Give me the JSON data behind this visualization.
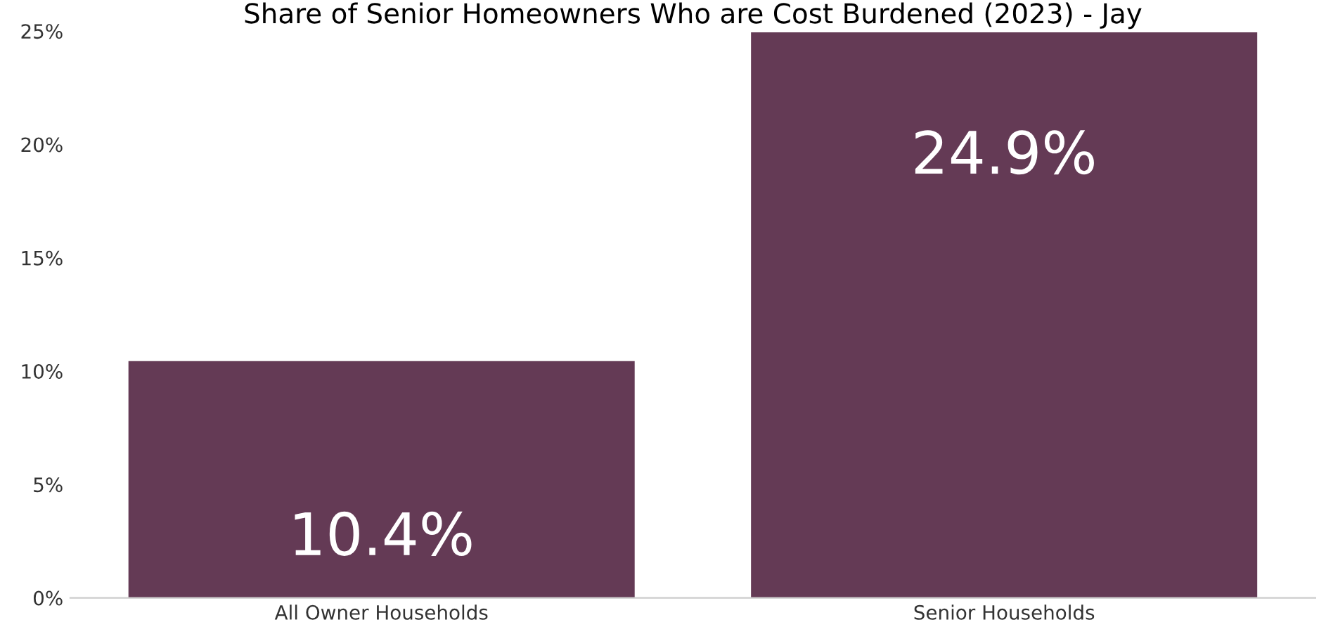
{
  "chart_data": {
    "type": "bar",
    "title": "Share of Senior Homeowners Who are Cost Burdened (2023) - Jay",
    "categories": [
      "All Owner Households",
      "Senior Households"
    ],
    "values": [
      10.4,
      24.9
    ],
    "color": "#643a55",
    "value_labels": [
      "10.4%",
      "24.9%"
    ],
    "ylim": [
      0,
      25
    ],
    "yticks": [
      {
        "value": 0,
        "label": "0%"
      },
      {
        "value": 5,
        "label": "5%"
      },
      {
        "value": 10,
        "label": "10%"
      },
      {
        "value": 15,
        "label": "15%"
      },
      {
        "value": 20,
        "label": "20%"
      },
      {
        "value": 25,
        "label": "25%"
      }
    ],
    "grid": false,
    "legend": false
  }
}
